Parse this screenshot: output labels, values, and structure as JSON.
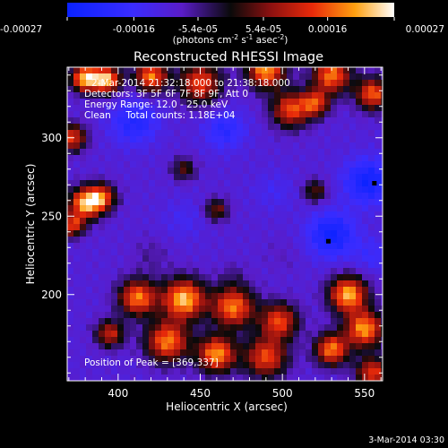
{
  "chart_data": {
    "type": "heatmap",
    "title": "Reconstructed RHESSI Image",
    "xlabel": "Heliocentric X (arcsec)",
    "ylabel": "Heliocentric Y (arcsec)",
    "xlim": [
      369,
      561
    ],
    "ylim": [
      145,
      345
    ],
    "x_ticks": [
      400,
      450,
      500,
      550
    ],
    "y_ticks": [
      200,
      250,
      300
    ],
    "colorbar": {
      "min": -0.00027,
      "max": 0.00027,
      "ticks": [
        -0.00027,
        -0.00016,
        -5.4e-05,
        5.4e-05,
        0.00016,
        0.00027
      ],
      "tick_labels": [
        "-0.00027",
        "-0.00016",
        "-5.4e-05",
        "5.4e-05",
        "0.00016",
        "0.00027"
      ],
      "unit_label_main": "(photons cm",
      "unit_sup1": "-2",
      "unit_mid": " s",
      "unit_sup2": "-1",
      "unit_mid2": " asec",
      "unit_sup3": "-2",
      "unit_end": ")"
    },
    "info_lines": [
      "2-Mar-2014 21:32:18.000 to 21:38:18.000",
      "Detectors: 3F 5F 6F 7F 8F 9F, Att 0",
      "Energy Range: 12.0 - 25.0 keV",
      "Clean     Total counts: 1.18E+04"
    ],
    "peak_label": "Position of Peak = [369,337]",
    "footer_date": "3-Mar-2014 03:30",
    "blobs": [
      {
        "x": 380,
        "y": 338,
        "v": 0.00025,
        "s": 6
      },
      {
        "x": 393,
        "y": 337,
        "v": 0.00024,
        "s": 6
      },
      {
        "x": 420,
        "y": 339,
        "v": 0.0002,
        "s": 7
      },
      {
        "x": 450,
        "y": 335,
        "v": 0.00016,
        "s": 9
      },
      {
        "x": 490,
        "y": 343,
        "v": 0.00022,
        "s": 8
      },
      {
        "x": 530,
        "y": 340,
        "v": 0.0002,
        "s": 8
      },
      {
        "x": 555,
        "y": 328,
        "v": 0.00018,
        "s": 7
      },
      {
        "x": 505,
        "y": 318,
        "v": 0.00016,
        "s": 8
      },
      {
        "x": 520,
        "y": 322,
        "v": 0.00014,
        "s": 6
      },
      {
        "x": 372,
        "y": 300,
        "v": 0.00015,
        "s": 6
      },
      {
        "x": 380,
        "y": 258,
        "v": 0.00023,
        "s": 7
      },
      {
        "x": 390,
        "y": 262,
        "v": 0.00015,
        "s": 6
      },
      {
        "x": 372,
        "y": 244,
        "v": 0.00014,
        "s": 5
      },
      {
        "x": 412,
        "y": 198,
        "v": 0.0002,
        "s": 8
      },
      {
        "x": 440,
        "y": 197,
        "v": 0.00025,
        "s": 9
      },
      {
        "x": 470,
        "y": 192,
        "v": 0.0002,
        "s": 9
      },
      {
        "x": 498,
        "y": 183,
        "v": 0.00016,
        "s": 8
      },
      {
        "x": 430,
        "y": 170,
        "v": 0.0002,
        "s": 9
      },
      {
        "x": 460,
        "y": 162,
        "v": 0.00022,
        "s": 8
      },
      {
        "x": 490,
        "y": 160,
        "v": 0.00016,
        "s": 9
      },
      {
        "x": 540,
        "y": 200,
        "v": 0.00024,
        "s": 8
      },
      {
        "x": 550,
        "y": 178,
        "v": 0.00022,
        "s": 8
      },
      {
        "x": 530,
        "y": 165,
        "v": 0.0002,
        "s": 7
      },
      {
        "x": 555,
        "y": 150,
        "v": 0.00015,
        "s": 7
      },
      {
        "x": 395,
        "y": 175,
        "v": 0.00012,
        "s": 6
      },
      {
        "x": 460,
        "y": 254,
        "v": 6e-05,
        "s": 5
      },
      {
        "x": 520,
        "y": 266,
        "v": 5e-05,
        "s": 5
      },
      {
        "x": 440,
        "y": 280,
        "v": 4e-05,
        "s": 5
      },
      {
        "x": 410,
        "y": 310,
        "v": -0.00022,
        "s": 10
      },
      {
        "x": 465,
        "y": 305,
        "v": -0.0002,
        "s": 9
      },
      {
        "x": 525,
        "y": 298,
        "v": -0.0001,
        "s": 8
      },
      {
        "x": 440,
        "y": 248,
        "v": -0.00014,
        "s": 9
      },
      {
        "x": 495,
        "y": 266,
        "v": -0.00014,
        "s": 9
      },
      {
        "x": 552,
        "y": 272,
        "v": -0.00026,
        "s": 10
      },
      {
        "x": 530,
        "y": 238,
        "v": -0.00026,
        "s": 10
      },
      {
        "x": 555,
        "y": 225,
        "v": -0.00016,
        "s": 8
      },
      {
        "x": 500,
        "y": 225,
        "v": -8e-05,
        "s": 8
      },
      {
        "x": 420,
        "y": 225,
        "v": -6e-05,
        "s": 8
      },
      {
        "x": 380,
        "y": 285,
        "v": -0.0001,
        "s": 7
      },
      {
        "x": 470,
        "y": 212,
        "v": -6e-05,
        "s": 6
      }
    ],
    "markers": [
      {
        "x": 528,
        "y": 234
      },
      {
        "x": 556,
        "y": 271
      }
    ]
  }
}
